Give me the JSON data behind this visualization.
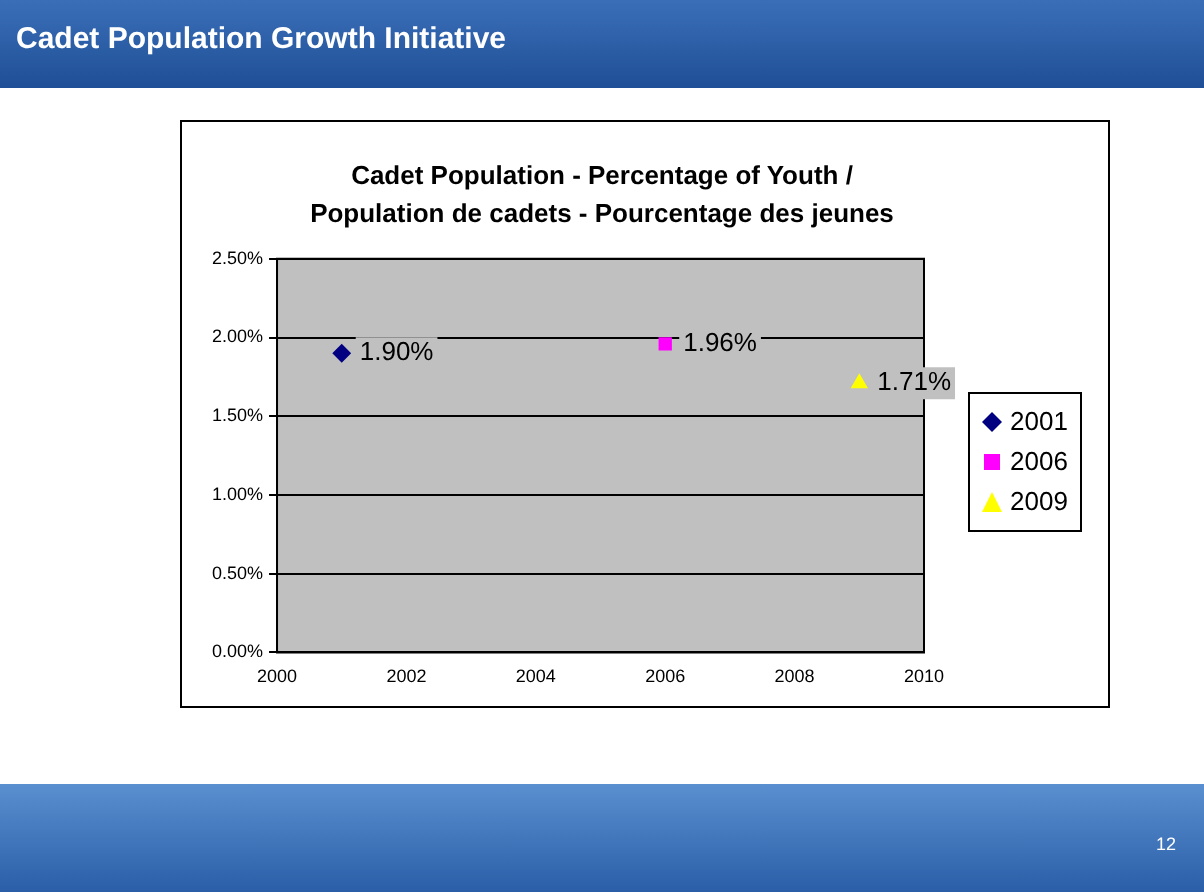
{
  "chart_data": {
    "type": "scatter",
    "title": "Cadet Population Growth Initiative",
    "subtitle": "Cadet Population - Percentage of Youth / Population de cadets - Pourcentage des jeunes",
    "series": [
      {
        "name": "2001",
        "color": "#000080",
        "marker": "diamond",
        "x": [
          2001
        ],
        "values": [
          1.9
        ],
        "value_labels": [
          "1.90%"
        ]
      },
      {
        "name": "2006",
        "color": "#ff00ff",
        "marker": "square",
        "x": [
          2006
        ],
        "values": [
          1.96
        ],
        "value_labels": [
          "1.96%"
        ]
      },
      {
        "name": "2009",
        "color": "#ffff00",
        "marker": "triangle",
        "x": [
          2009
        ],
        "values": [
          1.71
        ],
        "value_labels": [
          "1.71%"
        ]
      }
    ],
    "xlim": [
      2000,
      2010
    ],
    "xticks": [
      2000,
      2002,
      2004,
      2006,
      2008,
      2010
    ],
    "ylim": [
      0,
      2.5
    ],
    "yticks": [
      {
        "value": 0,
        "label": "0.00%"
      },
      {
        "value": 0.5,
        "label": "0.50%"
      },
      {
        "value": 1,
        "label": "1.00%"
      },
      {
        "value": 1.5,
        "label": "1.50%"
      },
      {
        "value": 2,
        "label": "2.00%"
      },
      {
        "value": 2.5,
        "label": "2.50%"
      }
    ],
    "grid": "y",
    "legend": "right",
    "annotations": [
      "12"
    ]
  }
}
